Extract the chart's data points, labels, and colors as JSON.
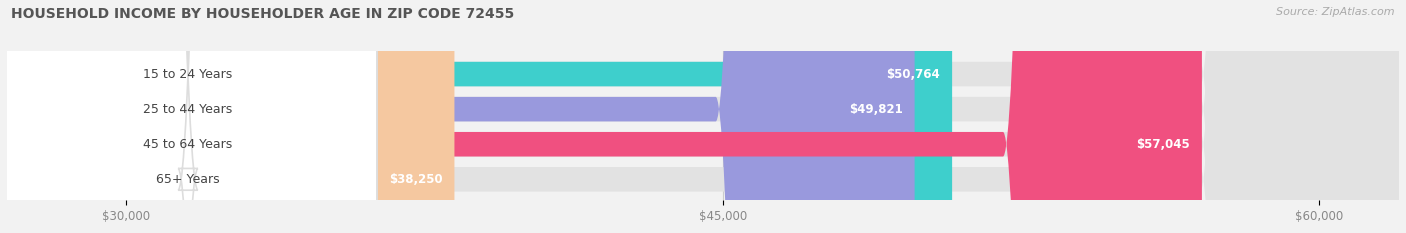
{
  "title": "HOUSEHOLD INCOME BY HOUSEHOLDER AGE IN ZIP CODE 72455",
  "source": "Source: ZipAtlas.com",
  "categories": [
    "15 to 24 Years",
    "25 to 44 Years",
    "45 to 64 Years",
    "65+ Years"
  ],
  "values": [
    50764,
    49821,
    57045,
    38250
  ],
  "labels": [
    "$50,764",
    "$49,821",
    "$57,045",
    "$38,250"
  ],
  "bar_colors": [
    "#3ecfcc",
    "#9999dd",
    "#f05080",
    "#f5c8a0"
  ],
  "background_color": "#f2f2f2",
  "bar_bg_color": "#e2e2e2",
  "xmin": 27000,
  "xmax": 62000,
  "xticks": [
    30000,
    45000,
    60000
  ],
  "xtick_labels": [
    "$30,000",
    "$45,000",
    "$60,000"
  ],
  "title_fontsize": 10,
  "source_fontsize": 8,
  "label_fontsize": 8.5,
  "tick_fontsize": 8.5,
  "category_fontsize": 9
}
